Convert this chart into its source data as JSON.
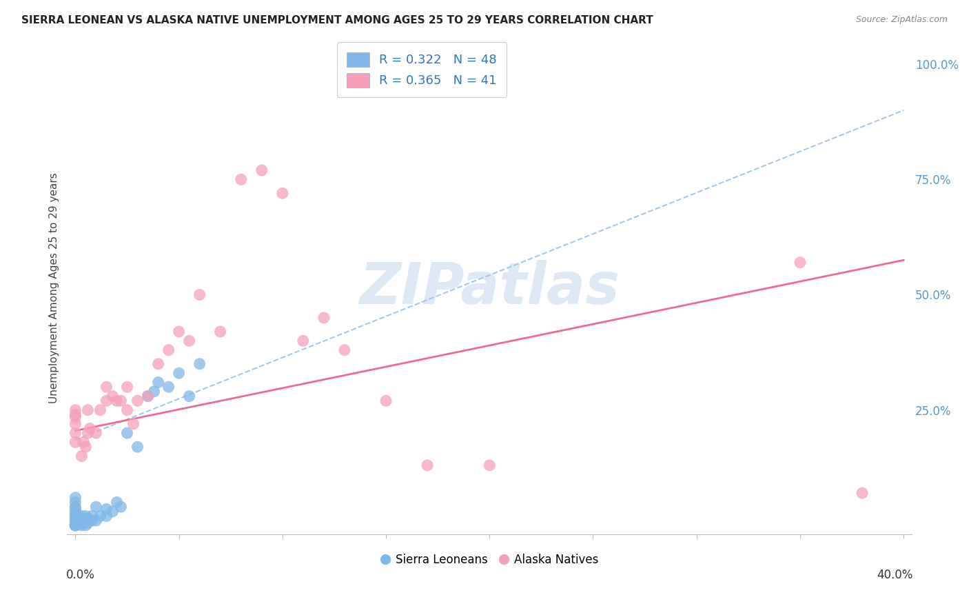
{
  "title": "SIERRA LEONEAN VS ALASKA NATIVE UNEMPLOYMENT AMONG AGES 25 TO 29 YEARS CORRELATION CHART",
  "source": "Source: ZipAtlas.com",
  "ylabel": "Unemployment Among Ages 25 to 29 years",
  "y_tick_labels": [
    "100.0%",
    "75.0%",
    "50.0%",
    "25.0%"
  ],
  "y_tick_values": [
    1.0,
    0.75,
    0.5,
    0.25
  ],
  "legend_blue_R": "0.322",
  "legend_blue_N": "48",
  "legend_pink_R": "0.365",
  "legend_pink_N": "41",
  "blue_color": "#80b8e8",
  "pink_color": "#f5a0b8",
  "blue_line_color": "#90c0ec",
  "pink_line_color": "#f06090",
  "background_color": "#ffffff",
  "grid_color": "#d8d8ec",
  "watermark_text": "ZIPatlas",
  "watermark_color": "#c5d8f0",
  "blue_points_x": [
    0.0,
    0.0,
    0.0,
    0.0,
    0.0,
    0.0,
    0.0,
    0.0,
    0.0,
    0.0,
    0.0,
    0.0,
    0.0,
    0.0,
    0.0,
    0.0,
    0.0,
    0.0,
    0.0,
    0.0,
    0.003,
    0.003,
    0.003,
    0.004,
    0.005,
    0.005,
    0.005,
    0.006,
    0.006,
    0.008,
    0.008,
    0.01,
    0.01,
    0.012,
    0.015,
    0.015,
    0.018,
    0.02,
    0.022,
    0.025,
    0.03,
    0.035,
    0.038,
    0.04,
    0.045,
    0.05,
    0.055,
    0.06
  ],
  "blue_points_y": [
    0.0,
    0.0,
    0.0,
    0.0,
    0.0,
    0.002,
    0.003,
    0.005,
    0.007,
    0.01,
    0.012,
    0.015,
    0.017,
    0.02,
    0.025,
    0.03,
    0.035,
    0.04,
    0.05,
    0.06,
    0.0,
    0.005,
    0.02,
    0.01,
    0.0,
    0.01,
    0.02,
    0.005,
    0.015,
    0.01,
    0.02,
    0.01,
    0.04,
    0.02,
    0.02,
    0.035,
    0.03,
    0.05,
    0.04,
    0.2,
    0.17,
    0.28,
    0.29,
    0.31,
    0.3,
    0.33,
    0.28,
    0.35
  ],
  "pink_points_x": [
    0.0,
    0.0,
    0.0,
    0.0,
    0.0,
    0.0,
    0.003,
    0.004,
    0.005,
    0.006,
    0.006,
    0.007,
    0.01,
    0.012,
    0.015,
    0.015,
    0.018,
    0.02,
    0.022,
    0.025,
    0.025,
    0.028,
    0.03,
    0.035,
    0.04,
    0.045,
    0.05,
    0.055,
    0.06,
    0.07,
    0.08,
    0.09,
    0.1,
    0.11,
    0.12,
    0.13,
    0.15,
    0.17,
    0.2,
    0.35,
    0.38
  ],
  "pink_points_y": [
    0.18,
    0.2,
    0.22,
    0.235,
    0.24,
    0.25,
    0.15,
    0.18,
    0.17,
    0.2,
    0.25,
    0.21,
    0.2,
    0.25,
    0.27,
    0.3,
    0.28,
    0.27,
    0.27,
    0.25,
    0.3,
    0.22,
    0.27,
    0.28,
    0.35,
    0.38,
    0.42,
    0.4,
    0.5,
    0.42,
    0.75,
    0.77,
    0.72,
    0.4,
    0.45,
    0.38,
    0.27,
    0.13,
    0.13,
    0.57,
    0.07
  ],
  "xlim": [
    -0.004,
    0.404
  ],
  "ylim": [
    -0.02,
    1.05
  ]
}
